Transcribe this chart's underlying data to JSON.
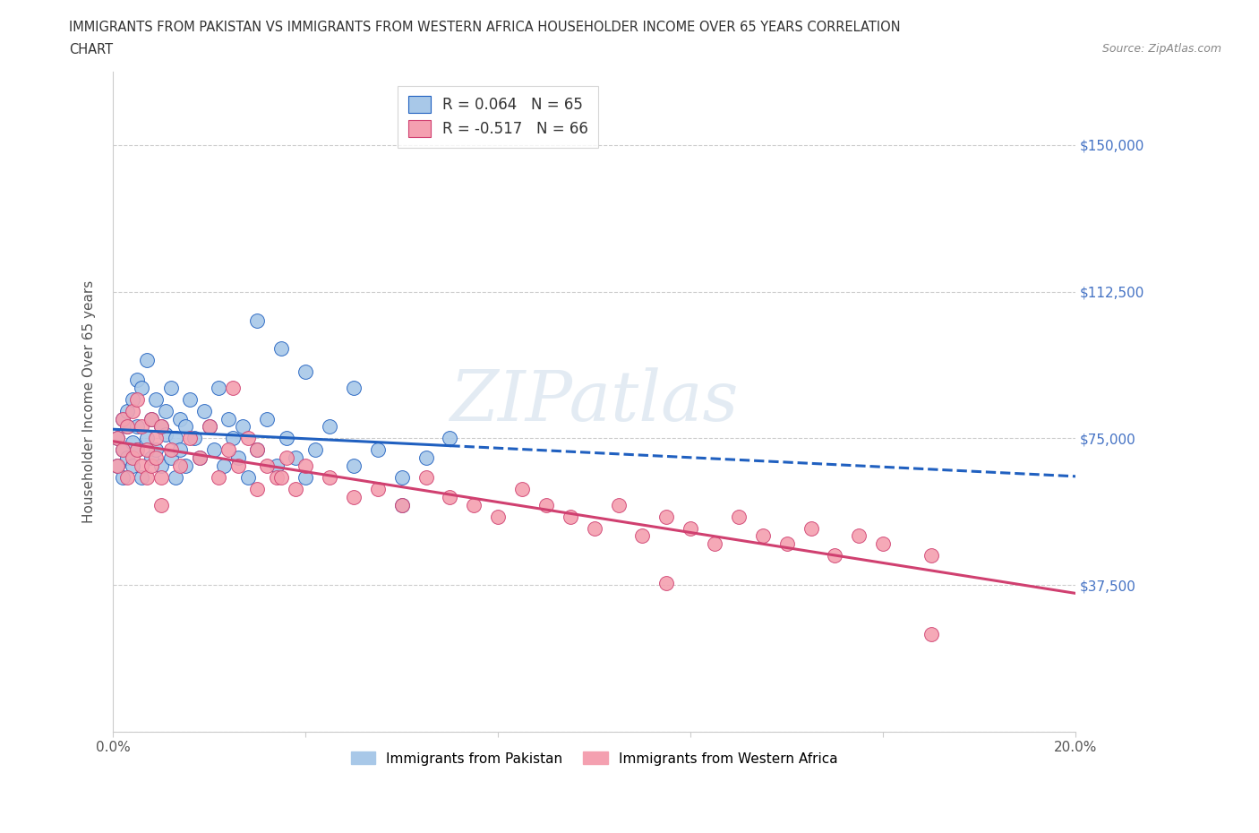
{
  "title_line1": "IMMIGRANTS FROM PAKISTAN VS IMMIGRANTS FROM WESTERN AFRICA HOUSEHOLDER INCOME OVER 65 YEARS CORRELATION",
  "title_line2": "CHART",
  "source": "Source: ZipAtlas.com",
  "ylabel": "Householder Income Over 65 years",
  "x_min": 0.0,
  "x_max": 0.2,
  "y_min": 0,
  "y_max": 168750,
  "y_ticks": [
    0,
    37500,
    75000,
    112500,
    150000
  ],
  "y_tick_labels": [
    "",
    "$37,500",
    "$75,000",
    "$112,500",
    "$150,000"
  ],
  "x_ticks": [
    0.0,
    0.04,
    0.08,
    0.12,
    0.16,
    0.2
  ],
  "legend_label1": "Immigrants from Pakistan",
  "legend_label2": "Immigrants from Western Africa",
  "color_pakistan": "#a8c8e8",
  "color_west_africa": "#f4a0b0",
  "color_line_pakistan": "#2060c0",
  "color_line_west_africa": "#d04070",
  "r_pakistan": 0.064,
  "r_west_africa": -0.517,
  "n_pakistan": 65,
  "n_west_africa": 66,
  "watermark": "ZIPatlas",
  "pakistan_x": [
    0.001,
    0.001,
    0.002,
    0.002,
    0.002,
    0.003,
    0.003,
    0.003,
    0.004,
    0.004,
    0.004,
    0.005,
    0.005,
    0.005,
    0.006,
    0.006,
    0.007,
    0.007,
    0.008,
    0.008,
    0.009,
    0.009,
    0.01,
    0.01,
    0.011,
    0.011,
    0.012,
    0.012,
    0.013,
    0.013,
    0.014,
    0.014,
    0.015,
    0.015,
    0.016,
    0.017,
    0.018,
    0.019,
    0.02,
    0.021,
    0.022,
    0.023,
    0.024,
    0.025,
    0.026,
    0.027,
    0.028,
    0.03,
    0.032,
    0.034,
    0.036,
    0.038,
    0.04,
    0.042,
    0.045,
    0.05,
    0.055,
    0.06,
    0.065,
    0.07,
    0.03,
    0.035,
    0.04,
    0.05,
    0.06
  ],
  "pakistan_y": [
    68000,
    75000,
    72000,
    80000,
    65000,
    78000,
    82000,
    70000,
    85000,
    74000,
    68000,
    90000,
    72000,
    78000,
    88000,
    65000,
    95000,
    75000,
    80000,
    70000,
    85000,
    72000,
    78000,
    68000,
    82000,
    76000,
    70000,
    88000,
    75000,
    65000,
    80000,
    72000,
    78000,
    68000,
    85000,
    75000,
    70000,
    82000,
    78000,
    72000,
    88000,
    68000,
    80000,
    75000,
    70000,
    78000,
    65000,
    72000,
    80000,
    68000,
    75000,
    70000,
    65000,
    72000,
    78000,
    68000,
    72000,
    65000,
    70000,
    75000,
    105000,
    98000,
    92000,
    88000,
    58000
  ],
  "west_africa_x": [
    0.001,
    0.001,
    0.002,
    0.002,
    0.003,
    0.003,
    0.004,
    0.004,
    0.005,
    0.005,
    0.006,
    0.006,
    0.007,
    0.007,
    0.008,
    0.008,
    0.009,
    0.009,
    0.01,
    0.01,
    0.012,
    0.014,
    0.016,
    0.018,
    0.02,
    0.022,
    0.024,
    0.026,
    0.028,
    0.03,
    0.032,
    0.034,
    0.036,
    0.038,
    0.04,
    0.045,
    0.05,
    0.055,
    0.06,
    0.065,
    0.07,
    0.075,
    0.08,
    0.085,
    0.09,
    0.095,
    0.1,
    0.105,
    0.11,
    0.115,
    0.12,
    0.125,
    0.13,
    0.135,
    0.14,
    0.145,
    0.15,
    0.155,
    0.16,
    0.17,
    0.025,
    0.03,
    0.035,
    0.115,
    0.17,
    0.01
  ],
  "west_africa_y": [
    75000,
    68000,
    80000,
    72000,
    65000,
    78000,
    82000,
    70000,
    85000,
    72000,
    68000,
    78000,
    72000,
    65000,
    80000,
    68000,
    75000,
    70000,
    78000,
    65000,
    72000,
    68000,
    75000,
    70000,
    78000,
    65000,
    72000,
    68000,
    75000,
    62000,
    68000,
    65000,
    70000,
    62000,
    68000,
    65000,
    60000,
    62000,
    58000,
    65000,
    60000,
    58000,
    55000,
    62000,
    58000,
    55000,
    52000,
    58000,
    50000,
    55000,
    52000,
    48000,
    55000,
    50000,
    48000,
    52000,
    45000,
    50000,
    48000,
    45000,
    88000,
    72000,
    65000,
    38000,
    25000,
    58000
  ]
}
